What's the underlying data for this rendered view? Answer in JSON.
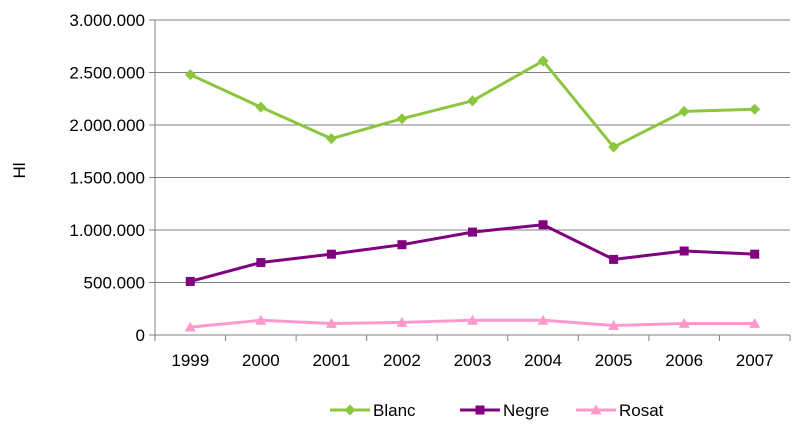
{
  "chart_data": {
    "type": "line",
    "title": "",
    "xlabel": "",
    "ylabel": "Hl",
    "categories": [
      "1999",
      "2000",
      "2001",
      "2002",
      "2003",
      "2004",
      "2005",
      "2006",
      "2007"
    ],
    "ylim": [
      0,
      3000000
    ],
    "yticks": [
      0,
      500000,
      1000000,
      1500000,
      2000000,
      2500000,
      3000000
    ],
    "ytick_labels": [
      "0",
      "500.000",
      "1.000.000",
      "1.500.000",
      "2.000.000",
      "2.500.000",
      "3.000.000"
    ],
    "grid": "horizontal",
    "legend": "bottom",
    "series": [
      {
        "name": "Blanc",
        "color": "#8CC63F",
        "marker": "diamond",
        "values": [
          2480000,
          2170000,
          1870000,
          2060000,
          2230000,
          2610000,
          1790000,
          2130000,
          2150000
        ]
      },
      {
        "name": "Negre",
        "color": "#800080",
        "marker": "square",
        "values": [
          510000,
          690000,
          770000,
          860000,
          980000,
          1050000,
          720000,
          800000,
          770000
        ]
      },
      {
        "name": "Rosat",
        "color": "#FF99CC",
        "marker": "triangle",
        "values": [
          75000,
          140000,
          110000,
          120000,
          140000,
          140000,
          90000,
          110000,
          110000
        ]
      }
    ]
  }
}
